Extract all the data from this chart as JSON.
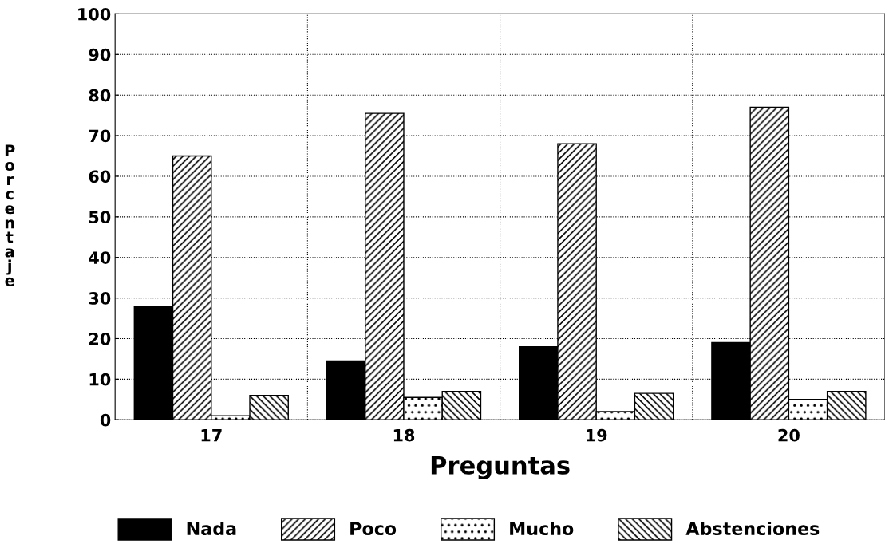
{
  "chart_data": {
    "type": "bar",
    "xlabel": "Preguntas",
    "ylabel": "Porcentaje",
    "categories": [
      "17",
      "18",
      "19",
      "20"
    ],
    "series": [
      {
        "name": "Nada",
        "color": "#000000",
        "values": [
          28,
          14.5,
          18,
          19
        ]
      },
      {
        "name": "Poco",
        "color": "#000000",
        "values": [
          65,
          75.5,
          68,
          77
        ]
      },
      {
        "name": "Mucho",
        "color": "#000000",
        "values": [
          1,
          5.5,
          2,
          5
        ]
      },
      {
        "name": "Abstenciones",
        "color": "#000000",
        "values": [
          6,
          7,
          6.5,
          7
        ]
      }
    ],
    "ylim": [
      0,
      100
    ],
    "yticks": [
      0,
      10,
      20,
      30,
      40,
      50,
      60,
      70,
      80,
      90,
      100
    ],
    "grid": true,
    "legend": "bottom"
  }
}
